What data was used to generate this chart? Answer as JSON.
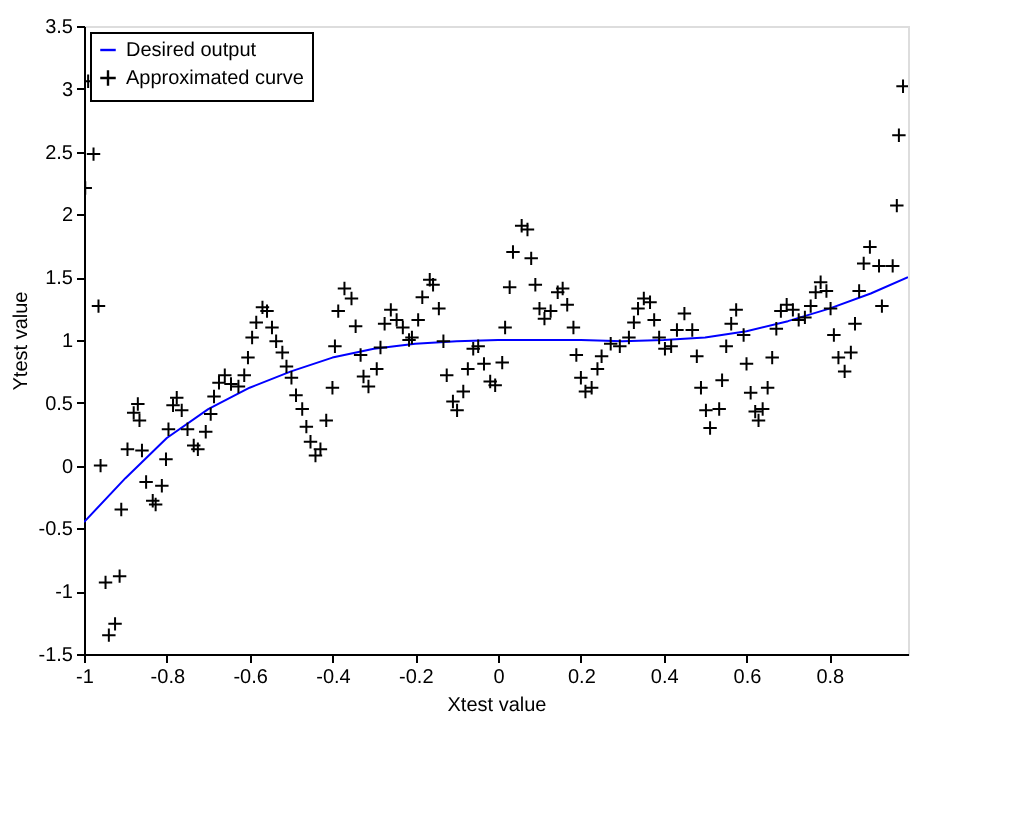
{
  "chart_data": {
    "type": "scatter",
    "xlabel": "Xtest value",
    "ylabel": "Ytest value",
    "xlim": [
      -1,
      0.99
    ],
    "ylim": [
      -1.5,
      3.5
    ],
    "xticks": [
      -1,
      -0.8,
      -0.6,
      -0.4,
      -0.2,
      0,
      0.2,
      0.4,
      0.6,
      0.8
    ],
    "yticks": [
      -1.5,
      -1,
      -0.5,
      0,
      0.5,
      1,
      1.5,
      2,
      2.5,
      3,
      3.5
    ],
    "grid": false,
    "legend": "top left",
    "series": [
      {
        "name": "Desired output",
        "type": "line",
        "color": "#0000ff",
        "line_style": "solid",
        "x": [
          -1,
          -0.9,
          -0.8,
          -0.7,
          -0.6,
          -0.5,
          -0.4,
          -0.3,
          -0.2,
          -0.1,
          0,
          0.1,
          0.2,
          0.3,
          0.4,
          0.5,
          0.6,
          0.7,
          0.8,
          0.9,
          0.99
        ],
        "values": [
          -0.45,
          -0.1,
          0.22,
          0.45,
          0.62,
          0.75,
          0.86,
          0.93,
          0.97,
          0.99,
          1.0,
          1.0,
          1.0,
          0.99,
          1.0,
          1.02,
          1.07,
          1.15,
          1.25,
          1.37,
          1.5
        ]
      },
      {
        "name": "Approximated curve",
        "marker": "cross",
        "color": "#000000",
        "x": [
          -0.99,
          -0.977,
          -0.997,
          -0.965,
          -0.96,
          -0.948,
          -0.914,
          -0.94,
          -0.925,
          -0.91,
          -0.895,
          -0.88,
          -0.87,
          -0.866,
          -0.86,
          -0.85,
          -0.834,
          -0.827,
          -0.812,
          -0.802,
          -0.796,
          -0.785,
          -0.776,
          -0.764,
          -0.75,
          -0.735,
          -0.725,
          -0.706,
          -0.694,
          -0.686,
          -0.674,
          -0.66,
          -0.645,
          -0.627,
          -0.613,
          -0.604,
          -0.594,
          -0.584,
          -0.569,
          -0.558,
          -0.546,
          -0.536,
          -0.521,
          -0.511,
          -0.499,
          -0.488,
          -0.473,
          -0.463,
          -0.453,
          -0.441,
          -0.429,
          -0.415,
          -0.4,
          -0.394,
          -0.371,
          -0.354,
          -0.386,
          -0.344,
          -0.332,
          -0.325,
          -0.313,
          -0.293,
          -0.284,
          -0.274,
          -0.259,
          -0.245,
          -0.23,
          -0.215,
          -0.208,
          -0.193,
          -0.183,
          -0.165,
          -0.157,
          -0.143,
          -0.132,
          -0.124,
          -0.109,
          -0.099,
          -0.084,
          -0.073,
          -0.06,
          -0.048,
          -0.034,
          -0.019,
          -0.007,
          0.01,
          0.017,
          0.028,
          0.036,
          0.057,
          0.071,
          0.08,
          0.09,
          0.1,
          0.112,
          0.127,
          0.144,
          0.156,
          0.167,
          0.182,
          0.189,
          0.2,
          0.211,
          0.226,
          0.24,
          0.25,
          0.272,
          0.294,
          0.316,
          0.328,
          0.338,
          0.352,
          0.367,
          0.377,
          0.389,
          0.403,
          0.418,
          0.432,
          0.45,
          0.469,
          0.48,
          0.49,
          0.502,
          0.512,
          0.534,
          0.541,
          0.551,
          0.563,
          0.575,
          0.593,
          0.6,
          0.61,
          0.621,
          0.629,
          0.639,
          0.651,
          0.662,
          0.672,
          0.683,
          0.697,
          0.712,
          0.726,
          0.741,
          0.755,
          0.767,
          0.779,
          0.793,
          0.803,
          0.811,
          0.822,
          0.837,
          0.852,
          0.862,
          0.872,
          0.883,
          0.898,
          0.92,
          0.953,
          0.927,
          0.963,
          0.978,
          0.968
        ],
        "values": [
          3.06,
          2.48,
          2.21,
          1.27,
          0.0,
          -0.93,
          -0.88,
          -1.35,
          -1.26,
          -0.35,
          0.13,
          0.42,
          0.49,
          0.36,
          0.12,
          -0.13,
          -0.28,
          -0.31,
          -0.16,
          0.05,
          0.29,
          0.48,
          0.54,
          0.44,
          0.29,
          0.16,
          0.13,
          0.27,
          0.41,
          0.55,
          0.66,
          0.72,
          0.65,
          0.63,
          0.72,
          0.86,
          1.02,
          1.14,
          1.26,
          1.23,
          1.1,
          0.99,
          0.9,
          0.79,
          0.7,
          0.56,
          0.45,
          0.31,
          0.19,
          0.08,
          0.13,
          0.36,
          0.62,
          0.95,
          1.41,
          1.33,
          1.23,
          1.11,
          0.88,
          0.71,
          0.63,
          0.77,
          0.94,
          1.13,
          1.24,
          1.16,
          1.1,
          1.0,
          1.02,
          1.16,
          1.34,
          1.48,
          1.44,
          1.25,
          0.99,
          0.72,
          0.51,
          0.44,
          0.59,
          0.77,
          0.93,
          0.95,
          0.81,
          0.67,
          0.64,
          0.82,
          1.1,
          1.42,
          1.7,
          1.91,
          1.88,
          1.65,
          1.44,
          1.25,
          1.17,
          1.23,
          1.38,
          1.41,
          1.28,
          1.1,
          0.88,
          0.7,
          0.59,
          0.62,
          0.77,
          0.87,
          0.97,
          0.95,
          1.02,
          1.14,
          1.25,
          1.33,
          1.3,
          1.16,
          1.02,
          0.93,
          0.95,
          1.08,
          1.21,
          1.08,
          0.87,
          0.62,
          0.44,
          0.3,
          0.45,
          0.68,
          0.95,
          1.13,
          1.24,
          1.04,
          0.81,
          0.58,
          0.43,
          0.36,
          0.45,
          0.62,
          0.86,
          1.09,
          1.23,
          1.28,
          1.24,
          1.16,
          1.18,
          1.27,
          1.38,
          1.46,
          1.39,
          1.25,
          1.04,
          0.86,
          0.75,
          0.9,
          1.13,
          1.39,
          1.61,
          1.74,
          1.59,
          1.59,
          1.27,
          2.07,
          3.02,
          2.63
        ]
      }
    ]
  }
}
